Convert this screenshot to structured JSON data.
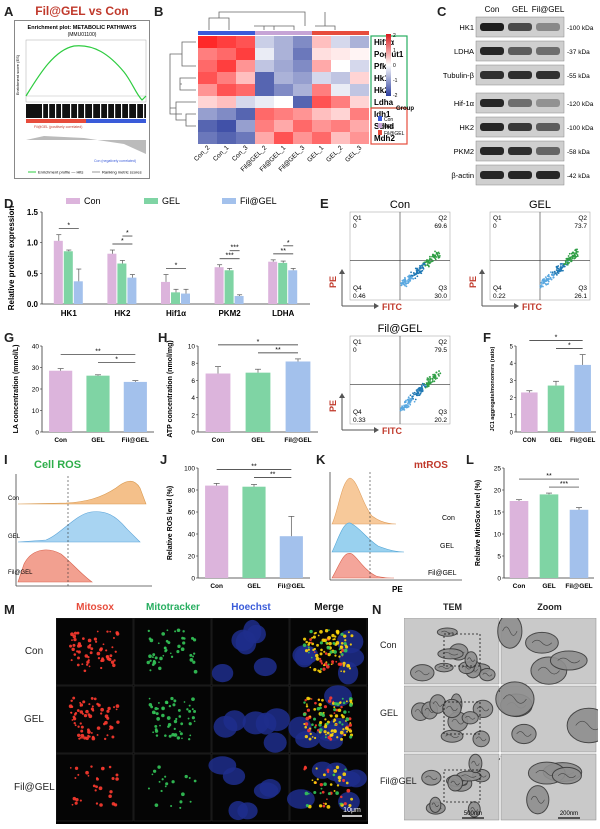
{
  "panels": {
    "A": {
      "letter": "A",
      "title": "Fil@GEL vs Con",
      "enrichment_title": "Enrichment plot: METABOLIC PATHWAYS",
      "enrichment_sub": "(MMU01100)",
      "ylabel": "Enrichment score (ES)",
      "legend_hits": "Enrichment profile — Hits",
      "legend_rank": "Ranking metric scores",
      "low_label": "Con (negatively correlated)",
      "high_label": "Fil@GEL (positively correlated)"
    },
    "B": {
      "letter": "B",
      "genes": [
        "Hif1α",
        "Poglut1",
        "Pfkp",
        "Hk1",
        "Hk2",
        "Ldha",
        "Idh1",
        "Sdhd",
        "Mdh2"
      ],
      "samples": [
        "Con_2",
        "Con_1",
        "Con_3",
        "Fil@GEL_2",
        "Fil@GEL_1",
        "Fil@GEL_3",
        "GEL_1",
        "GEL_2",
        "GEL_3"
      ],
      "scale": [
        "2",
        "1",
        "0",
        "-1",
        "-2"
      ],
      "legend_title": "Group",
      "legend_items": [
        "Con",
        "GEL",
        "Fil@GEL"
      ]
    },
    "C": {
      "letter": "C",
      "columns": [
        "Con",
        "GEL",
        "Fil@GEL"
      ],
      "rows": [
        {
          "name": "HK1",
          "kda": "-100 kDa"
        },
        {
          "name": "LDHA",
          "kda": "-37 kDa"
        },
        {
          "name": "Tubulin-β",
          "kda": "-55 kDa"
        },
        {
          "name": "Hif-1α",
          "kda": "-120 kDa"
        },
        {
          "name": "HK2",
          "kda": "-100 kDa"
        },
        {
          "name": "PKM2",
          "kda": "-58 kDa"
        },
        {
          "name": "β-actin",
          "kda": "-42 kDa"
        }
      ]
    },
    "D": {
      "letter": "D"
    },
    "E": {
      "letter": "E",
      "plots": [
        {
          "title": "Con",
          "q1": "Q1",
          "q1v": "0",
          "q2": "Q2",
          "q2v": "69.6",
          "q3": "Q3",
          "q3v": "30.0",
          "q4": "Q4",
          "q4v": "0.46"
        },
        {
          "title": "GEL",
          "q1": "Q1",
          "q1v": "0",
          "q2": "Q2",
          "q2v": "73.7",
          "q3": "Q3",
          "q3v": "26.1",
          "q4": "Q4",
          "q4v": "0.22"
        },
        {
          "title": "Fil@GEL",
          "q1": "Q1",
          "q1v": "0",
          "q2": "Q2",
          "q2v": "79.5",
          "q3": "Q3",
          "q3v": "20.2",
          "q4": "Q4",
          "q4v": "0.33"
        }
      ],
      "xaxis": "FITC",
      "yaxis": "PE"
    },
    "F": {
      "letter": "F"
    },
    "G": {
      "letter": "G"
    },
    "H": {
      "letter": "H"
    },
    "I": {
      "letter": "I",
      "title": "Cell ROS",
      "labels": [
        "Con",
        "GEL",
        "Fil@GEL"
      ]
    },
    "J": {
      "letter": "J"
    },
    "K": {
      "letter": "K",
      "title": "mtROS",
      "labels": [
        "Con",
        "GEL",
        "Fil@GEL"
      ],
      "xaxis": "PE"
    },
    "L": {
      "letter": "L"
    },
    "M": {
      "letter": "M",
      "columns": [
        "Mitosox",
        "Mitotracker",
        "Hoechst",
        "Merge"
      ],
      "rows": [
        "Con",
        "GEL",
        "Fil@GEL"
      ],
      "scalebar": "10μm"
    },
    "N": {
      "letter": "N",
      "columns": [
        "TEM",
        "Zoom"
      ],
      "rows": [
        "Con",
        "GEL",
        "Fil@GEL"
      ],
      "scale1": "500nm",
      "scale2": "200nm"
    }
  },
  "chart_data": [
    {
      "id": "D",
      "type": "bar",
      "categories": [
        "HK1",
        "HK2",
        "Hif1α",
        "PKM2",
        "LDHA"
      ],
      "series": [
        {
          "name": "Con",
          "values": [
            1.03,
            0.82,
            0.36,
            0.6,
            0.69
          ]
        },
        {
          "name": "GEL",
          "values": [
            0.86,
            0.66,
            0.19,
            0.55,
            0.67
          ]
        },
        {
          "name": "Fil@GEL",
          "values": [
            0.37,
            0.43,
            0.17,
            0.13,
            0.55
          ]
        }
      ],
      "errors": [
        [
          0.1,
          0.06,
          0.12,
          0.04,
          0.03
        ],
        [
          0.02,
          0.05,
          0.05,
          0.03,
          0.03
        ],
        [
          0.2,
          0.05,
          0.07,
          0.02,
          0.03
        ]
      ],
      "ylabel": "Relative protein expression",
      "ylim": [
        0,
        1.5
      ],
      "yticks": [
        "0.0",
        "0.5",
        "1.0",
        "1.5"
      ],
      "sig": [
        {
          "g": 0,
          "a": 0,
          "b": 2,
          "s": "*"
        },
        {
          "g": 1,
          "a": 0,
          "b": 2,
          "s": "*"
        },
        {
          "g": 1,
          "a": 1,
          "b": 2,
          "s": "*"
        },
        {
          "g": 2,
          "a": 0,
          "b": 2,
          "s": "*"
        },
        {
          "g": 3,
          "a": 0,
          "b": 2,
          "s": "***"
        },
        {
          "g": 3,
          "a": 1,
          "b": 2,
          "s": "***"
        },
        {
          "g": 4,
          "a": 0,
          "b": 2,
          "s": "**"
        },
        {
          "g": 4,
          "a": 1,
          "b": 2,
          "s": "*"
        }
      ],
      "colors": [
        "#dcb4dc",
        "#7fd4a4",
        "#a3c1ec"
      ]
    },
    {
      "id": "F",
      "type": "bar",
      "categories": [
        "CON",
        "GEL",
        "Fil@GEL"
      ],
      "values": [
        2.3,
        2.7,
        3.9
      ],
      "errors": [
        0.1,
        0.25,
        0.6
      ],
      "ylabel": "JC1 aggregate/monomers (ratio)",
      "ylim": [
        0,
        5
      ],
      "yticks": [
        "0",
        "1",
        "2",
        "3",
        "4",
        "5"
      ],
      "sig": [
        {
          "a": 0,
          "b": 2,
          "s": "*"
        },
        {
          "a": 1,
          "b": 2,
          "s": "*"
        }
      ]
    },
    {
      "id": "G",
      "type": "bar",
      "categories": [
        "Con",
        "GEL",
        "Fil@GEL"
      ],
      "values": [
        28.5,
        26.2,
        23.3
      ],
      "errors": [
        1.0,
        0.4,
        0.6
      ],
      "ylabel": "LA concentration (mmol/L)",
      "ylim": [
        0,
        40
      ],
      "yticks": [
        "0",
        "10",
        "20",
        "30",
        "40"
      ],
      "sig": [
        {
          "a": 0,
          "b": 2,
          "s": "**"
        },
        {
          "a": 1,
          "b": 2,
          "s": "*"
        }
      ]
    },
    {
      "id": "H",
      "type": "bar",
      "categories": [
        "Con",
        "GEL",
        "Fil@GEL"
      ],
      "values": [
        6.8,
        6.9,
        8.2
      ],
      "errors": [
        0.8,
        0.4,
        0.3
      ],
      "ylabel": "ATP concentration (nmol/mg)",
      "ylim": [
        0,
        10
      ],
      "yticks": [
        "0",
        "2",
        "4",
        "6",
        "8",
        "10"
      ],
      "sig": [
        {
          "a": 0,
          "b": 2,
          "s": "*"
        },
        {
          "a": 1,
          "b": 2,
          "s": "**"
        }
      ]
    },
    {
      "id": "J",
      "type": "bar",
      "categories": [
        "Con",
        "GEL",
        "Fil@GEL"
      ],
      "values": [
        84,
        83,
        38
      ],
      "errors": [
        2,
        2,
        18
      ],
      "ylabel": "Relative ROS level (%)",
      "ylim": [
        0,
        100
      ],
      "yticks": [
        "0",
        "20",
        "40",
        "60",
        "80",
        "100"
      ],
      "sig": [
        {
          "a": 0,
          "b": 2,
          "s": "**"
        },
        {
          "a": 1,
          "b": 2,
          "s": "**"
        }
      ]
    },
    {
      "id": "L",
      "type": "bar",
      "categories": [
        "Con",
        "GEL",
        "Fil@GEL"
      ],
      "values": [
        17.5,
        19,
        15.5
      ],
      "errors": [
        0.3,
        0.3,
        0.5
      ],
      "ylabel": "Relative MitoSox level (%)",
      "ylim": [
        0,
        25
      ],
      "yticks": [
        "0",
        "5",
        "10",
        "15",
        "20",
        "25"
      ],
      "sig": [
        {
          "a": 0,
          "b": 2,
          "s": "**"
        },
        {
          "a": 1,
          "b": 2,
          "s": "***"
        }
      ]
    }
  ]
}
